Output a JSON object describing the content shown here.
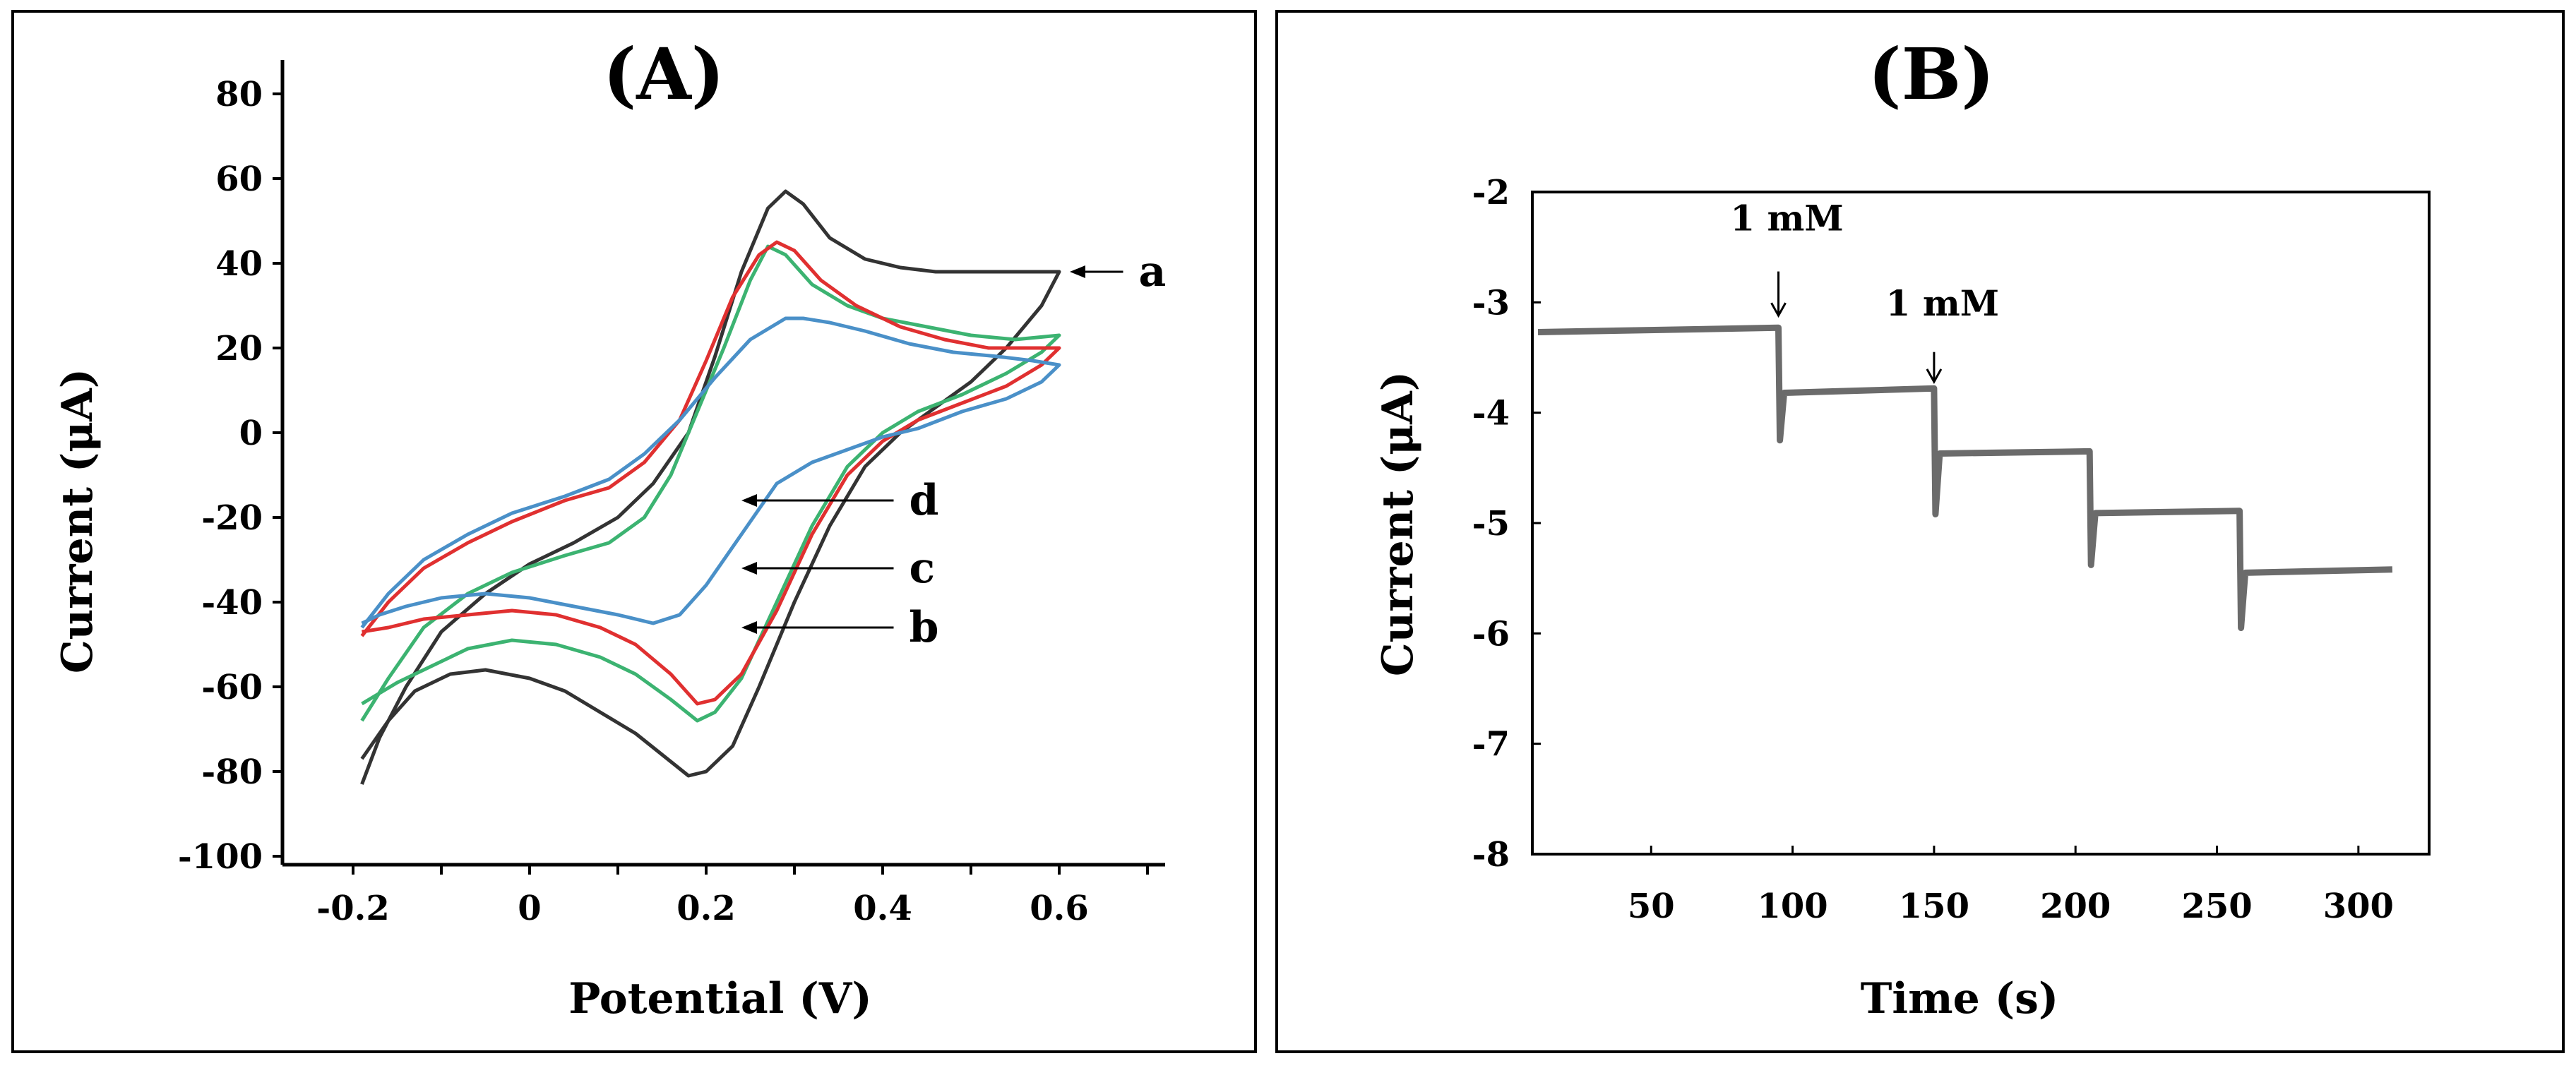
{
  "chart_data": [
    {
      "type": "line",
      "panel_label": "(A)",
      "title": "",
      "xlabel": "Potential (V)",
      "ylabel": "Current (μA)",
      "xlim": [
        -0.28,
        0.72
      ],
      "ylim": [
        -102,
        88
      ],
      "xticks": [
        -0.2,
        0,
        0.2,
        0.4,
        0.6
      ],
      "xtick_labels": [
        "-0.2",
        "0",
        "0.2",
        "0.4",
        "0.6"
      ],
      "yticks": [
        80,
        60,
        40,
        20,
        0,
        -20,
        -40,
        -60,
        -80,
        -100
      ],
      "ytick_labels": [
        "80",
        "60",
        "40",
        "20",
        "0",
        "-20",
        "-40",
        "-60",
        "-80",
        "-100"
      ],
      "grid": false,
      "series": [
        {
          "name": "a",
          "color": "#333333",
          "points": [
            [
              -0.19,
              -83
            ],
            [
              -0.17,
              -72
            ],
            [
              -0.14,
              -60
            ],
            [
              -0.1,
              -47
            ],
            [
              -0.05,
              -38
            ],
            [
              0.0,
              -31
            ],
            [
              0.05,
              -26
            ],
            [
              0.1,
              -20
            ],
            [
              0.14,
              -12
            ],
            [
              0.18,
              0
            ],
            [
              0.21,
              18
            ],
            [
              0.24,
              38
            ],
            [
              0.27,
              53
            ],
            [
              0.29,
              57
            ],
            [
              0.31,
              54
            ],
            [
              0.34,
              46
            ],
            [
              0.38,
              41
            ],
            [
              0.42,
              39
            ],
            [
              0.46,
              38
            ],
            [
              0.5,
              38
            ],
            [
              0.55,
              38
            ],
            [
              0.58,
              38
            ],
            [
              0.6,
              38
            ],
            [
              0.58,
              30
            ],
            [
              0.54,
              20
            ],
            [
              0.5,
              12
            ],
            [
              0.46,
              6
            ],
            [
              0.42,
              0
            ],
            [
              0.38,
              -8
            ],
            [
              0.34,
              -22
            ],
            [
              0.3,
              -40
            ],
            [
              0.26,
              -60
            ],
            [
              0.23,
              -74
            ],
            [
              0.2,
              -80
            ],
            [
              0.18,
              -81
            ],
            [
              0.15,
              -76
            ],
            [
              0.12,
              -71
            ],
            [
              0.08,
              -66
            ],
            [
              0.04,
              -61
            ],
            [
              0.0,
              -58
            ],
            [
              -0.05,
              -56
            ],
            [
              -0.09,
              -57
            ],
            [
              -0.13,
              -61
            ],
            [
              -0.16,
              -68
            ],
            [
              -0.19,
              -77
            ]
          ]
        },
        {
          "name": "b",
          "color": "#3cb371",
          "points": [
            [
              -0.19,
              -68
            ],
            [
              -0.16,
              -58
            ],
            [
              -0.12,
              -46
            ],
            [
              -0.07,
              -38
            ],
            [
              -0.02,
              -33
            ],
            [
              0.04,
              -29
            ],
            [
              0.09,
              -26
            ],
            [
              0.13,
              -20
            ],
            [
              0.16,
              -10
            ],
            [
              0.19,
              5
            ],
            [
              0.22,
              20
            ],
            [
              0.25,
              36
            ],
            [
              0.27,
              44
            ],
            [
              0.29,
              42
            ],
            [
              0.32,
              35
            ],
            [
              0.36,
              30
            ],
            [
              0.4,
              27
            ],
            [
              0.45,
              25
            ],
            [
              0.5,
              23
            ],
            [
              0.55,
              22
            ],
            [
              0.6,
              23
            ],
            [
              0.58,
              19
            ],
            [
              0.54,
              14
            ],
            [
              0.49,
              9
            ],
            [
              0.44,
              5
            ],
            [
              0.4,
              0
            ],
            [
              0.36,
              -8
            ],
            [
              0.32,
              -22
            ],
            [
              0.28,
              -40
            ],
            [
              0.24,
              -58
            ],
            [
              0.21,
              -66
            ],
            [
              0.19,
              -68
            ],
            [
              0.16,
              -63
            ],
            [
              0.12,
              -57
            ],
            [
              0.08,
              -53
            ],
            [
              0.03,
              -50
            ],
            [
              -0.02,
              -49
            ],
            [
              -0.07,
              -51
            ],
            [
              -0.11,
              -55
            ],
            [
              -0.15,
              -59
            ],
            [
              -0.19,
              -64
            ]
          ]
        },
        {
          "name": "c",
          "color": "#e03030",
          "points": [
            [
              -0.19,
              -48
            ],
            [
              -0.16,
              -40
            ],
            [
              -0.12,
              -32
            ],
            [
              -0.07,
              -26
            ],
            [
              -0.02,
              -21
            ],
            [
              0.04,
              -16
            ],
            [
              0.09,
              -13
            ],
            [
              0.13,
              -7
            ],
            [
              0.17,
              3
            ],
            [
              0.2,
              17
            ],
            [
              0.23,
              32
            ],
            [
              0.26,
              42
            ],
            [
              0.28,
              45
            ],
            [
              0.3,
              43
            ],
            [
              0.33,
              36
            ],
            [
              0.37,
              30
            ],
            [
              0.42,
              25
            ],
            [
              0.47,
              22
            ],
            [
              0.52,
              20
            ],
            [
              0.56,
              20
            ],
            [
              0.6,
              20
            ],
            [
              0.58,
              16
            ],
            [
              0.54,
              11
            ],
            [
              0.49,
              7
            ],
            [
              0.44,
              3
            ],
            [
              0.4,
              -2
            ],
            [
              0.36,
              -10
            ],
            [
              0.32,
              -24
            ],
            [
              0.28,
              -42
            ],
            [
              0.24,
              -57
            ],
            [
              0.21,
              -63
            ],
            [
              0.19,
              -64
            ],
            [
              0.16,
              -57
            ],
            [
              0.12,
              -50
            ],
            [
              0.08,
              -46
            ],
            [
              0.03,
              -43
            ],
            [
              -0.02,
              -42
            ],
            [
              -0.07,
              -43
            ],
            [
              -0.12,
              -44
            ],
            [
              -0.16,
              -46
            ],
            [
              -0.19,
              -47
            ]
          ]
        },
        {
          "name": "d",
          "color": "#4a90c8",
          "points": [
            [
              -0.19,
              -46
            ],
            [
              -0.16,
              -38
            ],
            [
              -0.12,
              -30
            ],
            [
              -0.07,
              -24
            ],
            [
              -0.02,
              -19
            ],
            [
              0.04,
              -15
            ],
            [
              0.09,
              -11
            ],
            [
              0.13,
              -5
            ],
            [
              0.17,
              3
            ],
            [
              0.21,
              13
            ],
            [
              0.25,
              22
            ],
            [
              0.29,
              27
            ],
            [
              0.31,
              27
            ],
            [
              0.34,
              26
            ],
            [
              0.38,
              24
            ],
            [
              0.43,
              21
            ],
            [
              0.48,
              19
            ],
            [
              0.53,
              18
            ],
            [
              0.57,
              17
            ],
            [
              0.6,
              16
            ],
            [
              0.58,
              12
            ],
            [
              0.54,
              8
            ],
            [
              0.49,
              5
            ],
            [
              0.44,
              1
            ],
            [
              0.4,
              -1
            ],
            [
              0.36,
              -4
            ],
            [
              0.32,
              -7
            ],
            [
              0.28,
              -12
            ],
            [
              0.24,
              -24
            ],
            [
              0.2,
              -36
            ],
            [
              0.17,
              -43
            ],
            [
              0.14,
              -45
            ],
            [
              0.1,
              -43
            ],
            [
              0.05,
              -41
            ],
            [
              0.0,
              -39
            ],
            [
              -0.05,
              -38
            ],
            [
              -0.1,
              -39
            ],
            [
              -0.14,
              -41
            ],
            [
              -0.17,
              -43
            ],
            [
              -0.19,
              -45
            ]
          ]
        }
      ],
      "curve_labels": [
        {
          "text": "a",
          "x": 0.69,
          "y": 37,
          "target_x": 0.612,
          "target_y": 38
        },
        {
          "text": "d",
          "x": 0.43,
          "y": -18,
          "target_x": 0.24,
          "target_y": -16
        },
        {
          "text": "c",
          "x": 0.43,
          "y": -32,
          "target_x": 0.24,
          "target_y": -32
        },
        {
          "text": "b",
          "x": 0.43,
          "y": -46,
          "target_x": 0.24,
          "target_y": -46
        }
      ]
    },
    {
      "type": "line",
      "panel_label": "(B)",
      "title": "",
      "xlabel": "Time (s)",
      "ylabel": "Current (μA)",
      "xlim": [
        8,
        325
      ],
      "ylim": [
        -8,
        -2
      ],
      "xticks": [
        50,
        100,
        150,
        200,
        250,
        300
      ],
      "xtick_labels": [
        "50",
        "100",
        "150",
        "200",
        "250",
        "300"
      ],
      "yticks": [
        -2,
        -3,
        -4,
        -5,
        -6,
        -7,
        -8
      ],
      "ytick_labels": [
        "-2",
        "-3",
        "-4",
        "-5",
        "-6",
        "-7",
        "-8"
      ],
      "grid": false,
      "series": [
        {
          "name": "",
          "color": "#6b6b6b",
          "points": [
            [
              10,
              -3.27
            ],
            [
              95,
              -3.23
            ],
            [
              95.5,
              -4.25
            ],
            [
              97,
              -3.82
            ],
            [
              150,
              -3.78
            ],
            [
              150.5,
              -4.92
            ],
            [
              152,
              -4.37
            ],
            [
              205,
              -4.35
            ],
            [
              205.5,
              -5.38
            ],
            [
              207,
              -4.91
            ],
            [
              258,
              -4.89
            ],
            [
              258.5,
              -5.95
            ],
            [
              260,
              -5.45
            ],
            [
              312,
              -5.42
            ]
          ]
        }
      ],
      "annotations": [
        {
          "text": "1 mM",
          "x": 95,
          "label_y": -2.35,
          "arrow_from": -2.72,
          "arrow_to": -3.12
        },
        {
          "text": "1 mM",
          "x": 150,
          "label_y": -3.12,
          "arrow_from": -3.45,
          "arrow_to": -3.72
        }
      ]
    }
  ]
}
